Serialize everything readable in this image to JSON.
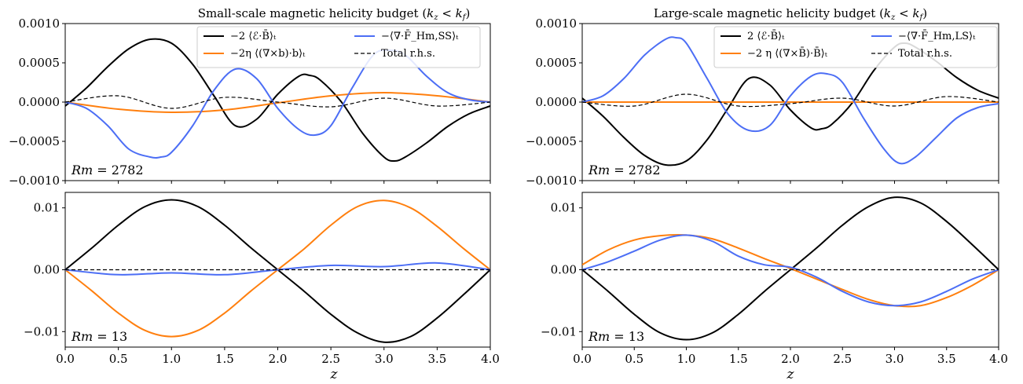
{
  "figure": {
    "xlabel": "z",
    "panel_titles": [
      "Small-scale magnetic helicity budget (k_z < k_f)",
      "Large-scale magnetic helicity budget (k_z < k_f)"
    ]
  },
  "colors": {
    "emf": "#000000",
    "resistive": "#ff7f0e",
    "flux": "#4c6ef5",
    "total": "#000000"
  },
  "chart_data": [
    {
      "type": "line",
      "panel": "top-left",
      "title": "Small-scale magnetic helicity budget (k_z < k_f)",
      "xlabel": "",
      "ylabel": "",
      "annotation": "Rm = 2782",
      "xlim": [
        0,
        4
      ],
      "ylim": [
        -0.001,
        0.001
      ],
      "yticks": [
        "0.0010",
        "0.0005",
        "0.0000",
        "−0.0005",
        "−0.0010"
      ],
      "legend": "top-right",
      "legend_labels": [
        "−2 ⟨ℰ·B̄⟩ₜ",
        "−2η ⟨(∇×b)·b⟩ₜ",
        "−⟨∇·F̄_Hm,SS⟩ₜ",
        "Total r.h.s."
      ],
      "series": [
        {
          "name": "−2 ⟨ℰ·B̄⟩ₜ",
          "color": "#000000",
          "dash": false,
          "x": [
            0,
            0.2,
            0.4,
            0.6,
            0.8,
            1.0,
            1.2,
            1.4,
            1.6,
            1.8,
            2.0,
            2.2,
            2.3,
            2.4,
            2.6,
            2.8,
            3.0,
            3.1,
            3.2,
            3.4,
            3.6,
            3.8,
            4.0
          ],
          "y": [
            -5e-05,
            0.00018,
            0.00045,
            0.00068,
            0.0008,
            0.00075,
            0.00048,
            8e-05,
            -0.0003,
            -0.00022,
            0.0001,
            0.00033,
            0.00034,
            0.00028,
            0.0,
            -0.0004,
            -0.0007,
            -0.00075,
            -0.0007,
            -0.00052,
            -0.00031,
            -0.00015,
            -5e-05
          ]
        },
        {
          "name": "−2η ⟨(∇×b)·b⟩ₜ",
          "color": "#ff7f0e",
          "dash": false,
          "x": [
            0,
            0.5,
            1.0,
            1.5,
            2.0,
            2.5,
            3.0,
            3.5,
            4.0
          ],
          "y": [
            0.0,
            -9e-05,
            -0.00013,
            -0.0001,
            -1e-05,
            8e-05,
            0.00012,
            8e-05,
            0.0
          ]
        },
        {
          "name": "−⟨∇·F̄_Hm,SS⟩ₜ",
          "color": "#4c6ef5",
          "dash": false,
          "x": [
            0,
            0.2,
            0.4,
            0.6,
            0.8,
            0.9,
            1.0,
            1.2,
            1.4,
            1.6,
            1.8,
            2.0,
            2.2,
            2.35,
            2.5,
            2.7,
            2.9,
            3.05,
            3.2,
            3.4,
            3.6,
            3.8,
            4.0
          ],
          "y": [
            0.0,
            -8e-05,
            -0.0003,
            -0.0006,
            -0.0007,
            -0.0007,
            -0.00064,
            -0.0003,
            0.00015,
            0.00042,
            0.0003,
            -8e-05,
            -0.00035,
            -0.00042,
            -0.0003,
            0.00018,
            0.0006,
            0.00066,
            0.0006,
            0.00033,
            0.00012,
            3e-05,
            0.0
          ]
        },
        {
          "name": "Total r.h.s.",
          "color": "#000000",
          "dash": true,
          "x": [
            0,
            0.5,
            1.0,
            1.5,
            2.0,
            2.5,
            3.0,
            3.5,
            4.0
          ],
          "y": [
            0.0,
            8e-05,
            -8e-05,
            6e-05,
            0.0,
            -6e-05,
            5e-05,
            -5e-05,
            0.0
          ]
        }
      ]
    },
    {
      "type": "line",
      "panel": "top-right",
      "title": "Large-scale magnetic helicity budget (k_z < k_f)",
      "xlabel": "",
      "ylabel": "",
      "annotation": "Rm = 2782",
      "xlim": [
        0,
        4
      ],
      "ylim": [
        -0.001,
        0.001
      ],
      "yticks": [
        "0.0010",
        "0.0005",
        "0.0000",
        "−0.0005",
        "−0.0010"
      ],
      "legend": "top-right",
      "legend_labels": [
        "2 ⟨ℰ·B̄⟩ₜ",
        "−2 η ⟨(∇×B̄)·B̄⟩ₜ",
        "−⟨∇·F̄_Hm,LS⟩ₜ",
        "Total r.h.s."
      ],
      "series": [
        {
          "name": "2 ⟨ℰ·B̄⟩ₜ",
          "color": "#000000",
          "dash": false,
          "x": [
            0,
            0.2,
            0.4,
            0.6,
            0.8,
            1.0,
            1.2,
            1.4,
            1.6,
            1.8,
            2.0,
            2.2,
            2.3,
            2.4,
            2.6,
            2.8,
            3.0,
            3.1,
            3.2,
            3.4,
            3.6,
            3.8,
            4.0
          ],
          "y": [
            5e-05,
            -0.00018,
            -0.00045,
            -0.00068,
            -0.0008,
            -0.00075,
            -0.00048,
            -8e-05,
            0.0003,
            0.00022,
            -0.0001,
            -0.00033,
            -0.00034,
            -0.00028,
            0.0,
            0.0004,
            0.0007,
            0.00075,
            0.0007,
            0.00052,
            0.00031,
            0.00015,
            5e-05
          ]
        },
        {
          "name": "−2 η ⟨(∇×B̄)·B̄⟩ₜ",
          "color": "#ff7f0e",
          "dash": false,
          "x": [
            0,
            1.0,
            2.0,
            3.0,
            4.0
          ],
          "y": [
            0.0,
            0.0,
            0.0,
            0.0,
            0.0
          ]
        },
        {
          "name": "−⟨∇·F̄_Hm,LS⟩ₜ",
          "color": "#4c6ef5",
          "dash": false,
          "x": [
            0,
            0.2,
            0.4,
            0.6,
            0.8,
            0.9,
            1.0,
            1.2,
            1.4,
            1.6,
            1.8,
            2.0,
            2.2,
            2.35,
            2.5,
            2.7,
            2.9,
            3.05,
            3.2,
            3.4,
            3.6,
            3.8,
            4.0
          ],
          "y": [
            0.0,
            8e-05,
            0.0003,
            0.0006,
            0.0008,
            0.00082,
            0.00075,
            0.0003,
            -0.00015,
            -0.00036,
            -0.0003,
            8e-05,
            0.00033,
            0.00036,
            0.00025,
            -0.0002,
            -0.0006,
            -0.00078,
            -0.0007,
            -0.00045,
            -0.0002,
            -7e-05,
            -2e-05
          ]
        },
        {
          "name": "Total r.h.s.",
          "color": "#000000",
          "dash": true,
          "x": [
            0,
            0.5,
            1.0,
            1.5,
            2.0,
            2.5,
            3.0,
            3.5,
            4.0
          ],
          "y": [
            0.0,
            -5e-05,
            0.0001,
            -5e-05,
            -2e-05,
            5e-05,
            -5e-05,
            7e-05,
            0.0
          ]
        }
      ]
    },
    {
      "type": "line",
      "panel": "bottom-left",
      "title": "",
      "xlabel": "z",
      "ylabel": "",
      "annotation": "Rm = 13",
      "xlim": [
        0,
        4
      ],
      "ylim": [
        -0.0125,
        0.0125
      ],
      "yticks": [
        "0.01",
        "0.00",
        "−0.01"
      ],
      "xticks": [
        "0.0",
        "0.5",
        "1.0",
        "1.5",
        "2.0",
        "2.5",
        "3.0",
        "3.5",
        "4.0"
      ],
      "series": [
        {
          "name": "−2 ⟨ℰ·B̄⟩ₜ",
          "color": "#000000",
          "dash": false,
          "x": [
            0,
            0.25,
            0.5,
            0.75,
            1.0,
            1.25,
            1.5,
            1.75,
            2.0,
            2.25,
            2.5,
            2.75,
            3.0,
            3.25,
            3.5,
            3.75,
            4.0
          ],
          "y": [
            0.0,
            0.0035,
            0.0072,
            0.0102,
            0.0113,
            0.0102,
            0.0072,
            0.0035,
            0.0,
            -0.0035,
            -0.0072,
            -0.0102,
            -0.0117,
            -0.0108,
            -0.0078,
            -0.004,
            0.0
          ]
        },
        {
          "name": "−2η ⟨(∇×b)·b⟩ₜ",
          "color": "#ff7f0e",
          "dash": false,
          "x": [
            0,
            0.25,
            0.5,
            0.75,
            1.0,
            1.25,
            1.5,
            1.75,
            2.0,
            2.25,
            2.5,
            2.75,
            3.0,
            3.25,
            3.5,
            3.75,
            4.0
          ],
          "y": [
            0.0,
            -0.0034,
            -0.007,
            -0.0098,
            -0.0108,
            -0.0098,
            -0.007,
            -0.0034,
            0.0,
            0.0034,
            0.0072,
            0.0102,
            0.0112,
            0.01,
            0.007,
            0.0034,
            0.0
          ]
        },
        {
          "name": "−⟨∇·F̄_Hm,SS⟩ₜ",
          "color": "#4c6ef5",
          "dash": false,
          "x": [
            0,
            0.5,
            1.0,
            1.5,
            2.0,
            2.5,
            3.0,
            3.5,
            4.0
          ],
          "y": [
            0.0,
            -0.0008,
            -0.0005,
            -0.0008,
            0.0,
            0.0007,
            0.0005,
            0.0011,
            0.0
          ]
        },
        {
          "name": "Total r.h.s.",
          "color": "#000000",
          "dash": true,
          "x": [
            0,
            1.0,
            2.0,
            3.0,
            4.0
          ],
          "y": [
            0.0,
            0.0,
            0.0,
            0.0,
            0.0
          ]
        }
      ]
    },
    {
      "type": "line",
      "panel": "bottom-right",
      "title": "",
      "xlabel": "z",
      "ylabel": "",
      "annotation": "Rm = 13",
      "xlim": [
        0,
        4
      ],
      "ylim": [
        -0.0125,
        0.0125
      ],
      "yticks": [
        "0.01",
        "0.00",
        "−0.01"
      ],
      "xticks": [
        "0.0",
        "0.5",
        "1.0",
        "1.5",
        "2.0",
        "2.5",
        "3.0",
        "3.5",
        "4.0"
      ],
      "series": [
        {
          "name": "2 ⟨ℰ·B̄⟩ₜ",
          "color": "#000000",
          "dash": false,
          "x": [
            0,
            0.25,
            0.5,
            0.75,
            1.0,
            1.25,
            1.5,
            1.75,
            2.0,
            2.25,
            2.5,
            2.75,
            3.0,
            3.25,
            3.5,
            3.75,
            4.0
          ],
          "y": [
            0.0,
            -0.0035,
            -0.0072,
            -0.0102,
            -0.0113,
            -0.0102,
            -0.0072,
            -0.0035,
            0.0,
            0.0035,
            0.0072,
            0.0102,
            0.0117,
            0.0108,
            0.0078,
            0.004,
            0.0
          ]
        },
        {
          "name": "−2 η ⟨(∇×B̄)·B̄⟩ₜ",
          "color": "#ff7f0e",
          "dash": false,
          "x": [
            0,
            0.25,
            0.5,
            0.75,
            1.0,
            1.25,
            1.5,
            1.75,
            2.0,
            2.25,
            2.5,
            2.75,
            3.0,
            3.25,
            3.5,
            3.75,
            4.0
          ],
          "y": [
            0.0008,
            0.0032,
            0.0048,
            0.0055,
            0.0056,
            0.005,
            0.0035,
            0.0018,
            0.0002,
            -0.0015,
            -0.0032,
            -0.0048,
            -0.0058,
            -0.0058,
            -0.0045,
            -0.0025,
            0.0
          ]
        },
        {
          "name": "−⟨∇·F̄_Hm,LS⟩ₜ",
          "color": "#4c6ef5",
          "dash": false,
          "x": [
            0,
            0.25,
            0.5,
            0.75,
            1.0,
            1.25,
            1.5,
            1.75,
            2.0,
            2.25,
            2.5,
            2.75,
            3.0,
            3.25,
            3.5,
            3.75,
            4.0
          ],
          "y": [
            0.0,
            0.0013,
            0.003,
            0.0048,
            0.0056,
            0.0046,
            0.0022,
            0.0008,
            0.0004,
            -0.0012,
            -0.0035,
            -0.0052,
            -0.0058,
            -0.0052,
            -0.0035,
            -0.0015,
            0.0
          ]
        },
        {
          "name": "Total r.h.s.",
          "color": "#000000",
          "dash": true,
          "x": [
            0,
            1.0,
            2.0,
            3.0,
            4.0
          ],
          "y": [
            0.0,
            0.0,
            0.0,
            0.0,
            0.0
          ]
        }
      ]
    }
  ]
}
